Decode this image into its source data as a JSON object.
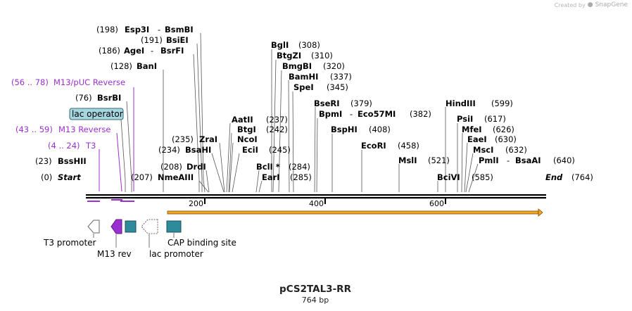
{
  "watermark": {
    "prefix": "Created by",
    "brand": "SnapGene"
  },
  "plasmid": {
    "name": "pCS2TAL3-RR",
    "size_label": "764 bp",
    "length": 764
  },
  "ticks": [
    200,
    400,
    600
  ],
  "ends": {
    "start_label": "Start",
    "start_pos": "(0)",
    "end_label": "End",
    "end_pos": "(764)"
  },
  "sites": [
    {
      "id": "BssHII",
      "name": "BssHII",
      "pos": "(23)"
    },
    {
      "id": "Esp3I",
      "name": "Esp3I",
      "name2": "BsmBI",
      "pos": "(198)"
    },
    {
      "id": "BsiEI",
      "name": "BsiEI",
      "pos": "(191)"
    },
    {
      "id": "AgeI",
      "name": "AgeI",
      "name2": "BsrFI",
      "pos": "(186)"
    },
    {
      "id": "BanI",
      "name": "BanI",
      "pos": "(128)"
    },
    {
      "id": "BsrBI",
      "name": "BsrBI",
      "pos": "(76)"
    },
    {
      "id": "NmeAIII",
      "name": "NmeAIII",
      "pos": "(207)"
    },
    {
      "id": "DrdI",
      "name": "DrdI",
      "pos": "(208)"
    },
    {
      "id": "BsaHI",
      "name": "BsaHI",
      "pos": "(234)"
    },
    {
      "id": "ZraI",
      "name": "ZraI",
      "pos": "(235)"
    },
    {
      "id": "AatII",
      "name": "AatII",
      "pos": "(237)"
    },
    {
      "id": "BtgI",
      "name": "BtgI",
      "pos": "(242)"
    },
    {
      "id": "NcoI",
      "name": "NcoI"
    },
    {
      "id": "EciI",
      "name": "EciI",
      "pos": "(245)"
    },
    {
      "id": "BclI",
      "name": "BclI *",
      "pos": "(284)"
    },
    {
      "id": "EarI",
      "name": "EarI",
      "pos": "(285)"
    },
    {
      "id": "BglI",
      "name": "BglI",
      "pos": "(308)"
    },
    {
      "id": "BtgZI",
      "name": "BtgZI",
      "pos": "(310)"
    },
    {
      "id": "BmgBI",
      "name": "BmgBI",
      "pos": "(320)"
    },
    {
      "id": "BamHI",
      "name": "BamHI",
      "pos": "(337)"
    },
    {
      "id": "SpeI",
      "name": "SpeI",
      "pos": "(345)"
    },
    {
      "id": "BseRI",
      "name": "BseRI",
      "pos": "(379)"
    },
    {
      "id": "BpmI",
      "name": "BpmI",
      "name2": "Eco57MI",
      "pos": "(382)"
    },
    {
      "id": "BspHI",
      "name": "BspHI",
      "pos": "(408)"
    },
    {
      "id": "EcoRI",
      "name": "EcoRI",
      "pos": "(458)"
    },
    {
      "id": "MslI",
      "name": "MslI",
      "pos": "(521)"
    },
    {
      "id": "BciVI",
      "name": "BciVI",
      "pos": "(585)"
    },
    {
      "id": "HindIII",
      "name": "HindIII",
      "pos": "(599)"
    },
    {
      "id": "PsiI",
      "name": "PsiI",
      "pos": "(617)"
    },
    {
      "id": "MfeI",
      "name": "MfeI",
      "pos": "(626)"
    },
    {
      "id": "EaeI",
      "name": "EaeI",
      "pos": "(630)"
    },
    {
      "id": "MscI",
      "name": "MscI",
      "pos": "(632)"
    },
    {
      "id": "PmlI",
      "name": "PmlI",
      "name2": "BsaAI",
      "pos": "(640)"
    }
  ],
  "primers": [
    {
      "id": "m13puc",
      "range": "(56 .. 78)",
      "name": "M13/pUC Reverse"
    },
    {
      "id": "m13rev",
      "range": "(43 .. 59)",
      "name": "M13 Reverse"
    },
    {
      "id": "t3",
      "range": "(4 .. 24)",
      "name": "T3"
    }
  ],
  "features": {
    "lac_operator": "lac operator",
    "t3_promoter": "T3 promoter",
    "m13_rev": "M13 rev",
    "lac_promoter": "lac promoter",
    "cap_site": "CAP binding site"
  },
  "colors": {
    "primer": "#9b30d0",
    "cap": "#2e8b9a",
    "operator": "#a6d6e0",
    "orf": "#f5a623"
  }
}
